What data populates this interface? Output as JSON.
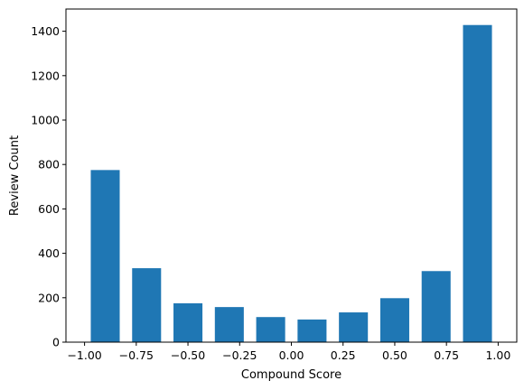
{
  "chart_data": {
    "type": "bar",
    "title": "",
    "xlabel": "Compound Score",
    "ylabel": "Review Count",
    "bar_color": "#1f77b4",
    "bin_width": 0.2,
    "bar_width": 0.14,
    "xlim": [
      -1.09,
      1.09
    ],
    "ylim": [
      0,
      1500
    ],
    "grid": false,
    "bins": [
      {
        "center": -0.9,
        "value": 775
      },
      {
        "center": -0.7,
        "value": 333
      },
      {
        "center": -0.5,
        "value": 175
      },
      {
        "center": -0.3,
        "value": 158
      },
      {
        "center": -0.1,
        "value": 113
      },
      {
        "center": 0.1,
        "value": 102
      },
      {
        "center": 0.3,
        "value": 134
      },
      {
        "center": 0.5,
        "value": 198
      },
      {
        "center": 0.7,
        "value": 320
      },
      {
        "center": 0.9,
        "value": 1428
      }
    ],
    "x_ticks": [
      {
        "value": -1.0,
        "label": "−1.00"
      },
      {
        "value": -0.75,
        "label": "−0.75"
      },
      {
        "value": -0.5,
        "label": "−0.50"
      },
      {
        "value": -0.25,
        "label": "−0.25"
      },
      {
        "value": 0.0,
        "label": "0.00"
      },
      {
        "value": 0.25,
        "label": "0.25"
      },
      {
        "value": 0.5,
        "label": "0.50"
      },
      {
        "value": 0.75,
        "label": "0.75"
      },
      {
        "value": 1.0,
        "label": "1.00"
      }
    ],
    "y_ticks": [
      {
        "value": 0,
        "label": "0"
      },
      {
        "value": 200,
        "label": "200"
      },
      {
        "value": 400,
        "label": "400"
      },
      {
        "value": 600,
        "label": "600"
      },
      {
        "value": 800,
        "label": "800"
      },
      {
        "value": 1000,
        "label": "1000"
      },
      {
        "value": 1200,
        "label": "1200"
      },
      {
        "value": 1400,
        "label": "1400"
      }
    ]
  }
}
